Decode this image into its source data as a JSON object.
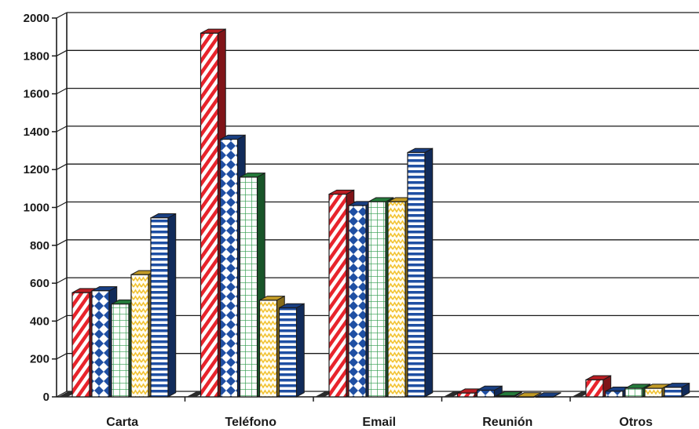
{
  "chart_data": {
    "type": "bar",
    "title": "",
    "xlabel": "",
    "ylabel": "",
    "categories": [
      "Carta",
      "Teléfono",
      "Email",
      "Reunión",
      "Otros"
    ],
    "yticks": [
      "0",
      "200",
      "400",
      "600",
      "800",
      "1000",
      "1200",
      "1400",
      "1600",
      "1800",
      "2000"
    ],
    "ylim": [
      0,
      2000
    ],
    "grid": true,
    "legend": "none",
    "series": [
      {
        "pattern": "diagonal-stripes",
        "color": "#e8242c",
        "values": [
          550,
          1920,
          1070,
          20,
          90
        ]
      },
      {
        "pattern": "diamonds",
        "color": "#1f4fa3",
        "values": [
          560,
          1360,
          1010,
          35,
          30
        ]
      },
      {
        "pattern": "grid",
        "color": "#2e9a4a",
        "values": [
          490,
          1160,
          1030,
          5,
          45
        ]
      },
      {
        "pattern": "zigzag",
        "color": "#f2c230",
        "values": [
          645,
          510,
          1030,
          0,
          45
        ]
      },
      {
        "pattern": "horizontal-stripes",
        "color": "#1f4fa3",
        "values": [
          945,
          470,
          1290,
          0,
          50
        ]
      }
    ]
  }
}
